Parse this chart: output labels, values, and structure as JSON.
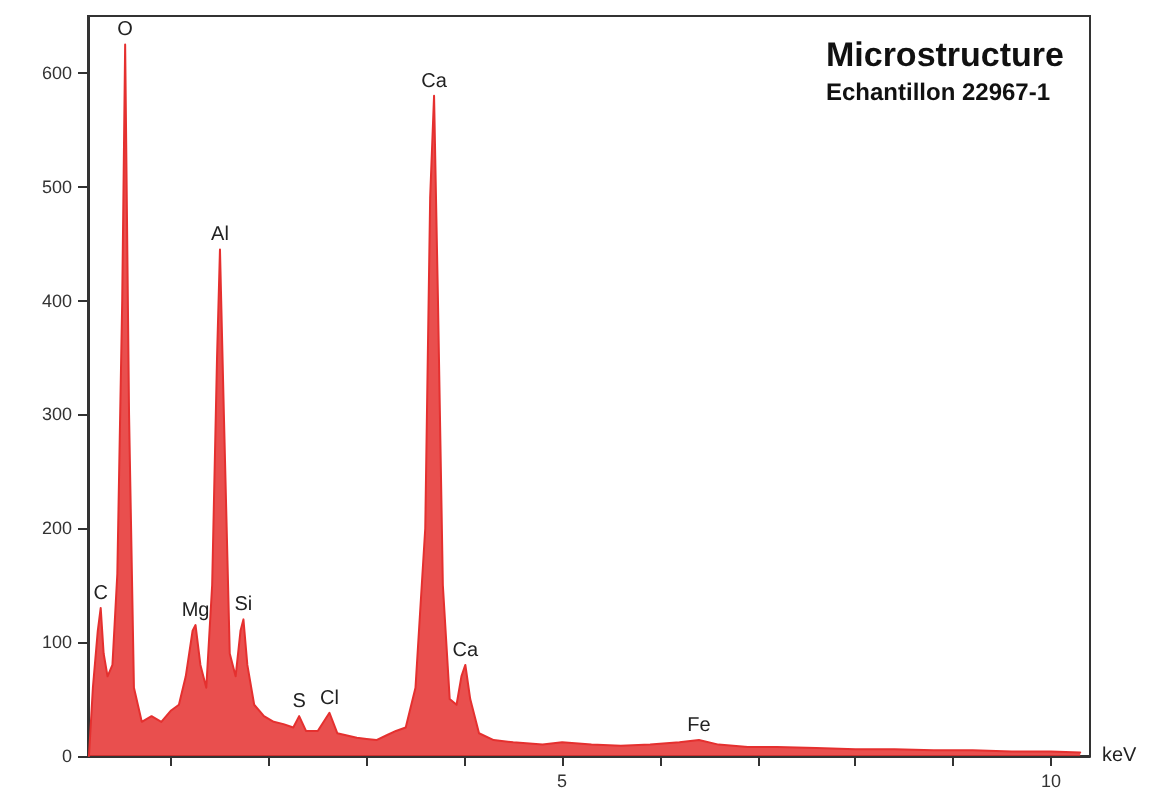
{
  "chart_data": {
    "type": "area",
    "title": "Microstructure",
    "subtitle": "Echantillon 22967-1",
    "xlabel": "keV",
    "xlim": [
      0.15,
      10.4
    ],
    "ylim": [
      0,
      650
    ],
    "xticks": [
      {
        "value": 1,
        "label": null
      },
      {
        "value": 2,
        "label": null
      },
      {
        "value": 3,
        "label": null
      },
      {
        "value": 4,
        "label": null
      },
      5,
      {
        "value": 6,
        "label": null
      },
      {
        "value": 7,
        "label": null
      },
      {
        "value": 8,
        "label": null
      },
      {
        "value": 9,
        "label": null
      },
      10
    ],
    "yticks": [
      0,
      100,
      200,
      300,
      400,
      500,
      600
    ],
    "grid": false,
    "marker": "none",
    "line_style": "solid",
    "x": [
      0.16,
      0.2,
      0.25,
      0.28,
      0.31,
      0.35,
      0.4,
      0.45,
      0.5,
      0.53,
      0.57,
      0.62,
      0.7,
      0.8,
      0.9,
      1.0,
      1.08,
      1.15,
      1.22,
      1.25,
      1.3,
      1.36,
      1.42,
      1.47,
      1.5,
      1.54,
      1.6,
      1.66,
      1.71,
      1.74,
      1.78,
      1.85,
      1.95,
      2.05,
      2.15,
      2.25,
      2.31,
      2.38,
      2.5,
      2.62,
      2.7,
      2.8,
      2.9,
      3.0,
      3.1,
      3.2,
      3.3,
      3.4,
      3.5,
      3.6,
      3.65,
      3.69,
      3.73,
      3.78,
      3.85,
      3.92,
      3.97,
      4.01,
      4.06,
      4.15,
      4.3,
      4.5,
      4.8,
      5.0,
      5.3,
      5.6,
      5.9,
      6.2,
      6.4,
      6.6,
      6.9,
      7.2,
      7.6,
      8.0,
      8.4,
      8.8,
      9.2,
      9.6,
      10.0,
      10.3
    ],
    "series": [
      {
        "color": "#e5302f",
        "values": [
          0,
          60,
          110,
          130,
          90,
          70,
          80,
          160,
          400,
          625,
          300,
          60,
          30,
          35,
          30,
          40,
          45,
          70,
          110,
          115,
          80,
          60,
          150,
          350,
          445,
          300,
          90,
          70,
          110,
          120,
          80,
          45,
          35,
          30,
          28,
          25,
          35,
          22,
          22,
          38,
          20,
          18,
          16,
          15,
          14,
          18,
          22,
          25,
          60,
          200,
          490,
          580,
          400,
          150,
          50,
          45,
          70,
          80,
          50,
          20,
          14,
          12,
          10,
          12,
          10,
          9,
          10,
          12,
          14,
          10,
          8,
          8,
          7,
          6,
          6,
          5,
          5,
          4,
          4,
          3
        ]
      }
    ],
    "annotations": [
      {
        "text": "C",
        "x": 0.28,
        "y": 130
      },
      {
        "text": "O",
        "x": 0.53,
        "y": 625
      },
      {
        "text": "Mg",
        "x": 1.25,
        "y": 115
      },
      {
        "text": "Al",
        "x": 1.5,
        "y": 445
      },
      {
        "text": "Si",
        "x": 1.74,
        "y": 120
      },
      {
        "text": "S",
        "x": 2.31,
        "y": 35
      },
      {
        "text": "Cl",
        "x": 2.62,
        "y": 38
      },
      {
        "text": "Ca",
        "x": 3.69,
        "y": 580
      },
      {
        "text": "Ca",
        "x": 4.01,
        "y": 80
      },
      {
        "text": "Fe",
        "x": 6.4,
        "y": 14
      }
    ]
  }
}
